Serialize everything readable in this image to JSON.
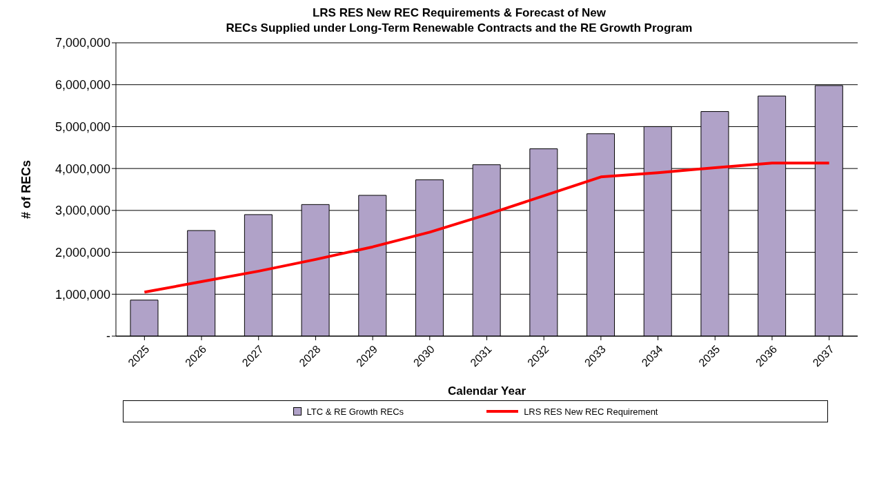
{
  "chart_data": {
    "type": "bar",
    "title": "LRS RES New REC Requirements & Forecast of New\nRECs Supplied under Long-Term Renewable Contracts and the RE Growth Program",
    "xlabel": "Calendar Year",
    "ylabel": "# of RECs",
    "categories": [
      "2025",
      "2026",
      "2027",
      "2028",
      "2029",
      "2030",
      "2031",
      "2032",
      "2033",
      "2034",
      "2035",
      "2036",
      "2037"
    ],
    "series": [
      {
        "name": "LTC & RE Growth RECs",
        "color": "#b0a2c8",
        "values": [
          860000,
          2520000,
          2900000,
          3140000,
          3360000,
          3730000,
          4090000,
          4470000,
          4830000,
          5000000,
          5360000,
          5730000,
          5980000
        ]
      },
      {
        "name": "LRS RES New REC Requirement",
        "type": "line",
        "color": "#ff0000",
        "values": [
          1050000,
          1300000,
          1550000,
          1830000,
          2130000,
          2480000,
          2900000,
          3350000,
          3800000,
          3900000,
          4020000,
          4130000,
          4130000
        ]
      }
    ],
    "ylim": [
      0,
      7000000
    ],
    "yticks": [
      {
        "value": 0,
        "label": "-"
      },
      {
        "value": 1000000,
        "label": "1,000,000"
      },
      {
        "value": 2000000,
        "label": "2,000,000"
      },
      {
        "value": 3000000,
        "label": "3,000,000"
      },
      {
        "value": 4000000,
        "label": "4,000,000"
      },
      {
        "value": 5000000,
        "label": "5,000,000"
      },
      {
        "value": 6000000,
        "label": "6,000,000"
      },
      {
        "value": 7000000,
        "label": "7,000,000"
      }
    ],
    "grid": "y",
    "legend": "bottom",
    "marker": "none",
    "line_style": "solid"
  }
}
